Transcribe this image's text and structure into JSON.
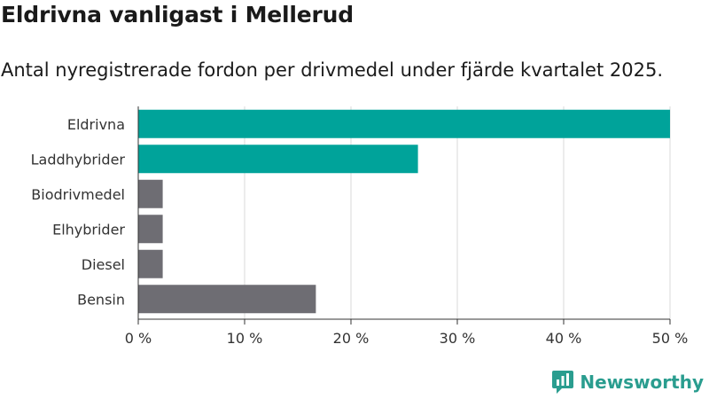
{
  "title": "Eldrivna vanligast i Mellerud",
  "subtitle": "Antal nyregistrerade fordon per drivmedel under fjärde kvartalet 2025.",
  "brand": {
    "name": "Newsworthy",
    "icon": "newsworthy-logo-icon"
  },
  "colors": {
    "highlight": "#00a39a",
    "default": "#6e6d73",
    "grid": "#d9d9d9",
    "axis": "#333333"
  },
  "chart_data": {
    "type": "bar",
    "orientation": "horizontal",
    "categories": [
      "Eldrivna",
      "Laddhybrider",
      "Biodrivmedel",
      "Elhybrider",
      "Diesel",
      "Bensin"
    ],
    "values": [
      50,
      26.3,
      2.3,
      2.3,
      2.3,
      16.7
    ],
    "highlighted": [
      true,
      true,
      false,
      false,
      false,
      false
    ],
    "xlim": [
      0,
      50
    ],
    "xticks": [
      0,
      10,
      20,
      30,
      40,
      50
    ],
    "xtick_labels": [
      "0 %",
      "10 %",
      "20 %",
      "30 %",
      "40 %",
      "50 %"
    ],
    "grid": true,
    "xlabel": "",
    "ylabel": ""
  }
}
